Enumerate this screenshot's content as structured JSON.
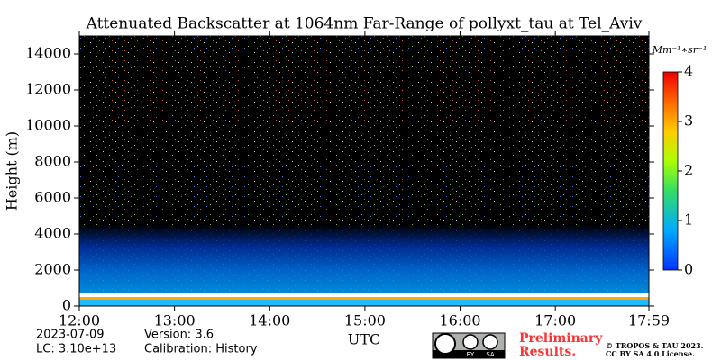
{
  "chart_data": {
    "type": "heatmap",
    "title": "Attenuated Backscatter at 1064nm Far-Range of pollyxt_tau at Tel_Aviv",
    "ylabel": "Height (m)",
    "xlabel": "UTC",
    "xlim": [
      12,
      17.983
    ],
    "xticks": [
      {
        "value": 12,
        "label": "12:00"
      },
      {
        "value": 13,
        "label": "13:00"
      },
      {
        "value": 14,
        "label": "14:00"
      },
      {
        "value": 15,
        "label": "15:00"
      },
      {
        "value": 16,
        "label": "16:00"
      },
      {
        "value": 17,
        "label": "17:00"
      },
      {
        "value": 17.983,
        "label": "17:59"
      }
    ],
    "ylim": [
      0,
      15000
    ],
    "yticks": [
      0,
      2000,
      4000,
      6000,
      8000,
      10000,
      12000,
      14000
    ],
    "colorbar": {
      "label": "Mm⁻¹∗sr⁻¹",
      "lim": [
        0,
        4
      ],
      "ticks": [
        0,
        1,
        2,
        3,
        4
      ]
    },
    "footer": {
      "date": "2023-07-09",
      "lc": "LC: 3.10e+13",
      "version": "Version: 3.6",
      "calibration": "Calibration: History",
      "preliminary": [
        "Preliminary",
        "Results."
      ],
      "copyright": [
        "© TROPOS & TAU 2023.",
        "CC BY SA 4.0 License."
      ],
      "license_logo": [
        "BY",
        "SA"
      ]
    }
  }
}
